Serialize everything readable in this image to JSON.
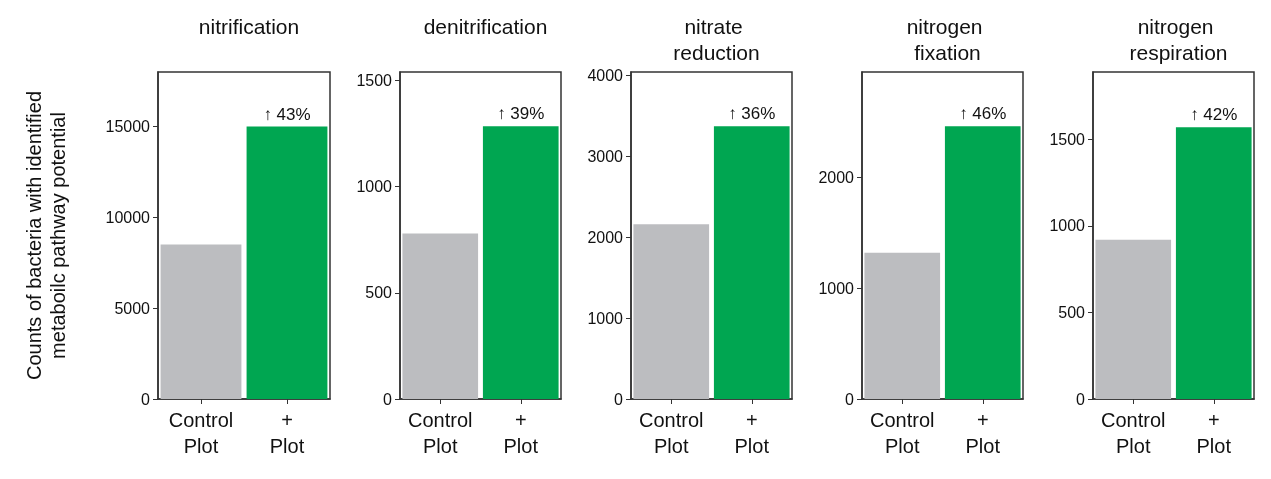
{
  "chart_data": [
    {
      "type": "bar",
      "title": "nitrification",
      "ylabel": "Counts of bacteria with identified metaboilc pathway potential",
      "categories": [
        "Control Plot",
        "+ Plot"
      ],
      "values": [
        8500,
        15000
      ],
      "colors": [
        "#bcbdc0",
        "#00a651"
      ],
      "ylim": [
        0,
        18000
      ],
      "yticks": [
        0,
        5000,
        10000,
        15000
      ],
      "grid": false,
      "annotations": [
        {
          "text": "↑ 43%",
          "x": "+ Plot",
          "y": 15000
        }
      ]
    },
    {
      "type": "bar",
      "title": "denitrification",
      "categories": [
        "Control Plot",
        "+ Plot"
      ],
      "values": [
        780,
        1285
      ],
      "colors": [
        "#bcbdc0",
        "#00a651"
      ],
      "ylim": [
        0,
        1540
      ],
      "yticks": [
        0,
        500,
        1000,
        1500
      ],
      "grid": false,
      "annotations": [
        {
          "text": "↑ 39%",
          "x": "+ Plot",
          "y": 1285
        }
      ]
    },
    {
      "type": "bar",
      "title": "nitrate reduction",
      "categories": [
        "Control Plot",
        "+ Plot"
      ],
      "values": [
        2160,
        3370
      ],
      "colors": [
        "#bcbdc0",
        "#00a651"
      ],
      "ylim": [
        0,
        4040
      ],
      "yticks": [
        0,
        1000,
        2000,
        3000,
        4000
      ],
      "grid": false,
      "annotations": [
        {
          "text": "↑ 36%",
          "x": "+ Plot",
          "y": 3370
        }
      ]
    },
    {
      "type": "bar",
      "title": "nitrogen fixation",
      "categories": [
        "Control Plot",
        "+ Plot"
      ],
      "values": [
        1320,
        2460
      ],
      "colors": [
        "#bcbdc0",
        "#00a651"
      ],
      "ylim": [
        0,
        2950
      ],
      "yticks": [
        0,
        1000,
        2000
      ],
      "grid": false,
      "annotations": [
        {
          "text": "↑ 46%",
          "x": "+ Plot",
          "y": 2460
        }
      ]
    },
    {
      "type": "bar",
      "title": "nitrogen respiration",
      "categories": [
        "Control Plot",
        "+ Plot"
      ],
      "values": [
        920,
        1570
      ],
      "colors": [
        "#bcbdc0",
        "#00a651"
      ],
      "ylim": [
        0,
        1890
      ],
      "yticks": [
        0,
        500,
        1000,
        1500
      ],
      "grid": false,
      "annotations": [
        {
          "text": "↑ 42%",
          "x": "+ Plot",
          "y": 1570
        }
      ]
    }
  ]
}
